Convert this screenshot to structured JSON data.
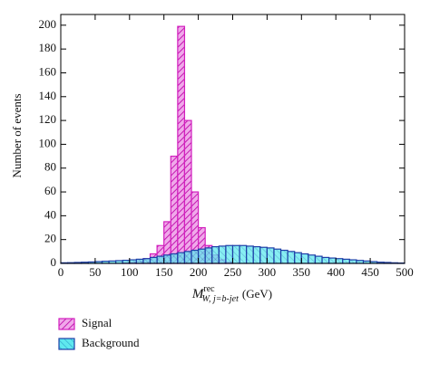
{
  "chart_data": {
    "type": "histogram",
    "ylabel": "Number of events",
    "xlabel": {
      "main": "M",
      "sup": "rec",
      "sub": "W, j=b-jet",
      "unit": "(GeV)"
    },
    "bins": [
      0,
      10,
      20,
      30,
      40,
      50,
      60,
      70,
      80,
      90,
      100,
      110,
      120,
      130,
      140,
      150,
      160,
      170,
      180,
      190,
      200,
      210,
      220,
      230,
      240,
      250,
      260,
      270,
      280,
      290,
      300,
      310,
      320,
      330,
      340,
      350,
      360,
      370,
      380,
      390,
      400,
      410,
      420,
      430,
      440,
      450,
      460,
      470,
      480,
      490,
      500
    ],
    "series": [
      {
        "name": "Signal",
        "color": "#d21fbe",
        "values": [
          0,
          0,
          0,
          0,
          0,
          0,
          0,
          0,
          0,
          0.5,
          1,
          2,
          4,
          8,
          15,
          35,
          90,
          199,
          120,
          60,
          30,
          15,
          7,
          3,
          1,
          0,
          0,
          0,
          0,
          0,
          0,
          0,
          0,
          0,
          0,
          0,
          0,
          0,
          0,
          0,
          0,
          0,
          0,
          0,
          0,
          0,
          0,
          0,
          0,
          0
        ]
      },
      {
        "name": "Background",
        "color": "#1f3fa8",
        "values": [
          0.5,
          0.6,
          0.8,
          1,
          1.2,
          1.5,
          1.8,
          2,
          2.3,
          2.6,
          3,
          3.5,
          4,
          5,
          6,
          7,
          8,
          9,
          10,
          11,
          12,
          13,
          14,
          14.5,
          15,
          15,
          15,
          14.5,
          14,
          13.5,
          13,
          12,
          11,
          10,
          9,
          8,
          7,
          6,
          5,
          4.5,
          4,
          3.5,
          3,
          2.5,
          2,
          1.5,
          1,
          0.8,
          0.5,
          0.3
        ]
      }
    ],
    "xlim": [
      0,
      500
    ],
    "xticks": [
      0,
      50,
      100,
      150,
      200,
      250,
      300,
      350,
      400,
      450,
      500
    ],
    "ylim": [
      0,
      209
    ],
    "yticks": [
      0,
      20,
      40,
      60,
      80,
      100,
      120,
      140,
      160,
      180,
      200
    ]
  }
}
